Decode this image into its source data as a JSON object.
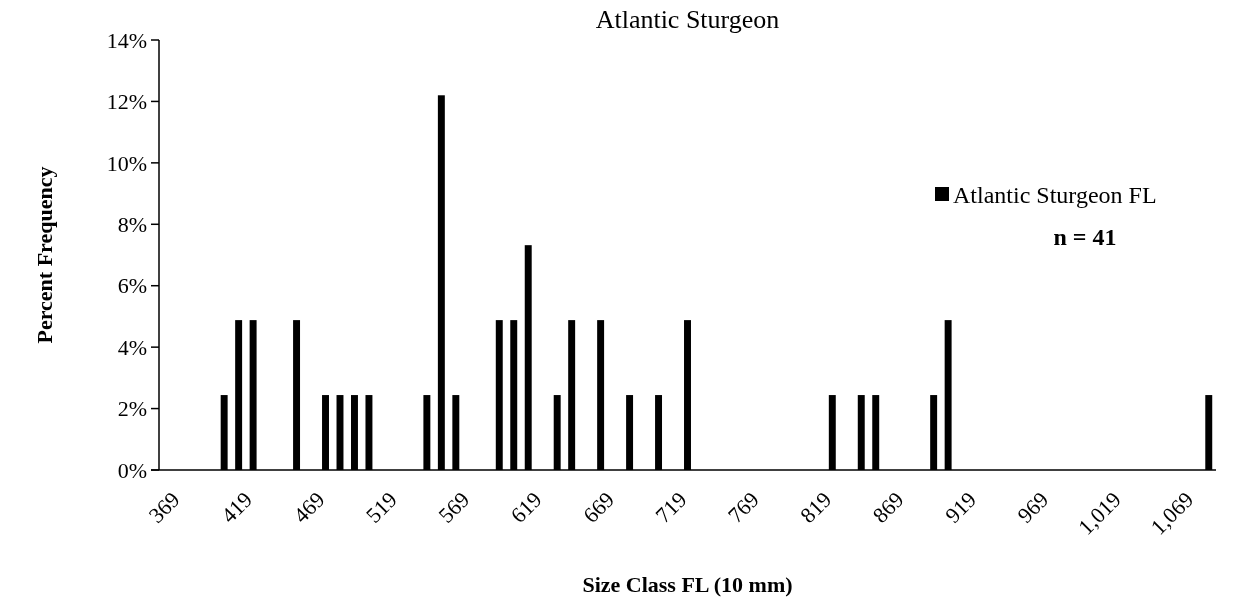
{
  "chart_data": {
    "type": "bar",
    "title": "Atlantic Sturgeon",
    "xlabel": "Size Class FL (10 mm)",
    "ylabel": "Percent Frequency",
    "categories": [
      "369",
      null,
      null,
      null,
      null,
      "419",
      null,
      null,
      null,
      null,
      "469",
      null,
      null,
      null,
      null,
      "519",
      null,
      null,
      null,
      null,
      "569",
      null,
      null,
      null,
      null,
      "619",
      null,
      null,
      null,
      null,
      "669",
      null,
      null,
      null,
      null,
      "719",
      null,
      null,
      null,
      null,
      "769",
      null,
      null,
      null,
      null,
      "819",
      null,
      null,
      null,
      null,
      "869",
      null,
      null,
      null,
      null,
      "919",
      null,
      null,
      null,
      null,
      "969",
      null,
      null,
      null,
      null,
      "1,019",
      null,
      null,
      null,
      null,
      "1,069",
      null,
      null
    ],
    "series": [
      {
        "name": "Atlantic Sturgeon FL",
        "color": "#000000",
        "values": [
          0,
          0,
          0,
          0,
          2.44,
          4.88,
          4.88,
          0,
          0,
          4.88,
          0,
          2.44,
          2.44,
          2.44,
          2.44,
          0,
          0,
          0,
          2.44,
          12.2,
          2.44,
          0,
          0,
          4.88,
          4.88,
          7.32,
          0,
          2.44,
          4.88,
          0,
          4.88,
          0,
          2.44,
          0,
          2.44,
          0,
          4.88,
          0,
          0,
          0,
          0,
          0,
          0,
          0,
          0,
          0,
          2.44,
          0,
          2.44,
          2.44,
          0,
          0,
          0,
          2.44,
          4.88,
          0,
          0,
          0,
          0,
          0,
          0,
          0,
          0,
          0,
          0,
          0,
          0,
          0,
          0,
          0,
          0,
          0,
          2.44
        ]
      }
    ],
    "ylim": [
      0,
      14
    ],
    "yticks": [
      {
        "value": 0,
        "label": "0%"
      },
      {
        "value": 2,
        "label": "2%"
      },
      {
        "value": 4,
        "label": "4%"
      },
      {
        "value": 6,
        "label": "6%"
      },
      {
        "value": 8,
        "label": "8%"
      },
      {
        "value": 10,
        "label": "10%"
      },
      {
        "value": 12,
        "label": "12%"
      },
      {
        "value": 14,
        "label": "14%"
      }
    ],
    "legend": "right",
    "grid": false,
    "annotations": [
      "n = 41"
    ]
  }
}
